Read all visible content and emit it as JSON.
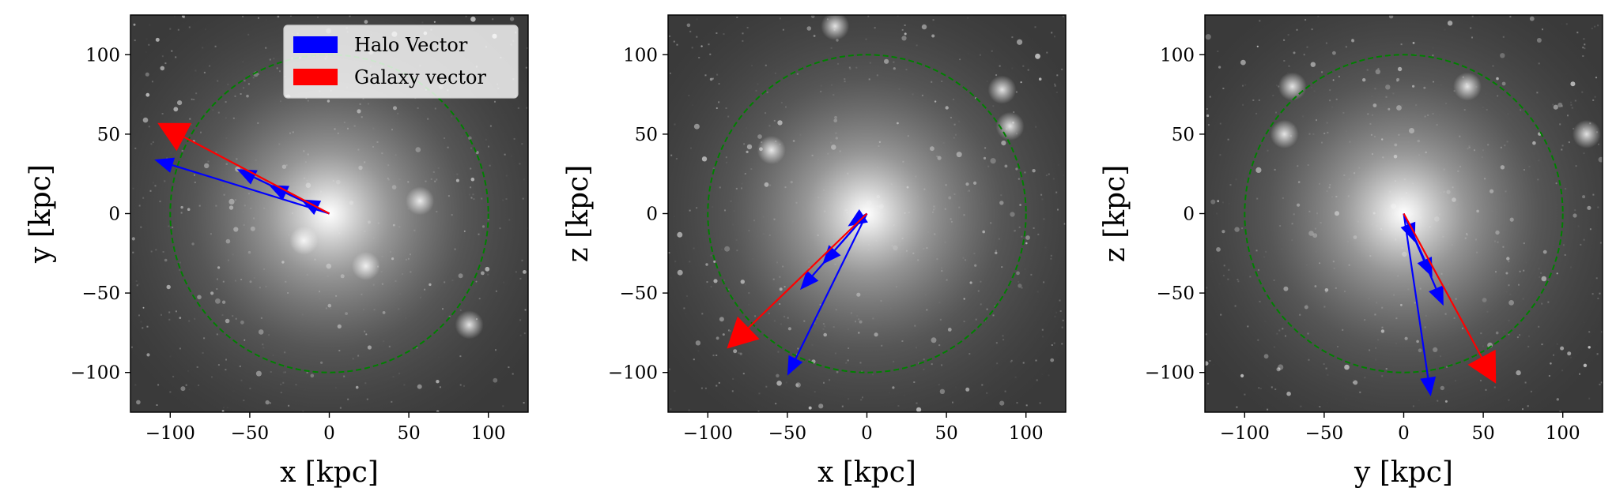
{
  "chart_data": [
    {
      "type": "scatter",
      "xlabel": "x [kpc]",
      "ylabel": "y [kpc]",
      "xlim": [
        -125,
        125
      ],
      "ylim": [
        -125,
        125
      ],
      "xticks": [
        -100,
        -50,
        0,
        50,
        100
      ],
      "yticks": [
        -100,
        -50,
        0,
        50,
        100
      ],
      "xtick_labels": [
        "−100",
        "−50",
        "0",
        "50",
        "100"
      ],
      "ytick_labels": [
        "−100",
        "−50",
        "0",
        "50",
        "100"
      ],
      "background": "grayscale density image",
      "circle": {
        "center": [
          0,
          0
        ],
        "radius": 100,
        "color": "#008000",
        "style": "dashed"
      },
      "legend": {
        "placement": "top-right",
        "entries": [
          {
            "label": "Halo Vector",
            "color": "#0000ff"
          },
          {
            "label": "Galaxy vector",
            "color": "#ff0000"
          }
        ]
      },
      "vectors": [
        {
          "series": "Halo Vector",
          "color": "#0000ff",
          "from": [
            0,
            0
          ],
          "to": [
            -110,
            34
          ],
          "head": "medium"
        },
        {
          "series": "Halo Vector",
          "color": "#0000ff",
          "from": [
            0,
            0
          ],
          "to": [
            -58,
            28
          ],
          "head": "medium"
        },
        {
          "series": "Halo Vector",
          "color": "#0000ff",
          "from": [
            0,
            0
          ],
          "to": [
            -38,
            18
          ],
          "head": "medium"
        },
        {
          "series": "Halo Vector",
          "color": "#0000ff",
          "from": [
            0,
            0
          ],
          "to": [
            -18,
            9
          ],
          "head": "medium"
        },
        {
          "series": "Galaxy vector",
          "color": "#ff0000",
          "from": [
            0,
            0
          ],
          "to": [
            -108,
            57
          ],
          "head": "large"
        }
      ],
      "density_peaks": [
        [
          0,
          0
        ],
        [
          23,
          -33
        ],
        [
          57,
          8
        ],
        [
          88,
          -70
        ],
        [
          -16,
          -17
        ]
      ]
    },
    {
      "type": "scatter",
      "xlabel": "x [kpc]",
      "ylabel": "z [kpc]",
      "xlim": [
        -125,
        125
      ],
      "ylim": [
        -125,
        125
      ],
      "xticks": [
        -100,
        -50,
        0,
        50,
        100
      ],
      "yticks": [
        -100,
        -50,
        0,
        50,
        100
      ],
      "xtick_labels": [
        "−100",
        "−50",
        "0",
        "50",
        "100"
      ],
      "ytick_labels": [
        "−100",
        "−50",
        "0",
        "50",
        "100"
      ],
      "background": "grayscale density image",
      "circle": {
        "center": [
          0,
          0
        ],
        "radius": 100,
        "color": "#008000",
        "style": "dashed"
      },
      "vectors": [
        {
          "series": "Halo Vector",
          "color": "#0000ff",
          "from": [
            0,
            0
          ],
          "to": [
            -50,
            -102
          ],
          "head": "medium"
        },
        {
          "series": "Halo Vector",
          "color": "#0000ff",
          "from": [
            0,
            0
          ],
          "to": [
            -42,
            -48
          ],
          "head": "medium"
        },
        {
          "series": "Halo Vector",
          "color": "#0000ff",
          "from": [
            0,
            0
          ],
          "to": [
            -28,
            -32
          ],
          "head": "medium"
        },
        {
          "series": "Halo Vector",
          "color": "#0000ff",
          "from": [
            0,
            0
          ],
          "to": [
            -12,
            -8
          ],
          "head": "medium"
        },
        {
          "series": "Galaxy vector",
          "color": "#ff0000",
          "from": [
            0,
            0
          ],
          "to": [
            -88,
            -85
          ],
          "head": "large"
        }
      ],
      "density_peaks": [
        [
          0,
          0
        ],
        [
          85,
          78
        ],
        [
          90,
          55
        ],
        [
          -20,
          118
        ],
        [
          -60,
          40
        ]
      ]
    },
    {
      "type": "scatter",
      "xlabel": "y [kpc]",
      "ylabel": "z [kpc]",
      "xlim": [
        -125,
        125
      ],
      "ylim": [
        -125,
        125
      ],
      "xticks": [
        -100,
        -50,
        0,
        50,
        100
      ],
      "yticks": [
        -100,
        -50,
        0,
        50,
        100
      ],
      "xtick_labels": [
        "−100",
        "−50",
        "0",
        "50",
        "100"
      ],
      "ytick_labels": [
        "−100",
        "−50",
        "0",
        "50",
        "100"
      ],
      "background": "grayscale density image",
      "circle": {
        "center": [
          0,
          0
        ],
        "radius": 100,
        "color": "#008000",
        "style": "dashed"
      },
      "vectors": [
        {
          "series": "Halo Vector",
          "color": "#0000ff",
          "from": [
            0,
            0
          ],
          "to": [
            17,
            -115
          ],
          "head": "medium"
        },
        {
          "series": "Halo Vector",
          "color": "#0000ff",
          "from": [
            0,
            0
          ],
          "to": [
            25,
            -58
          ],
          "head": "medium"
        },
        {
          "series": "Halo Vector",
          "color": "#0000ff",
          "from": [
            0,
            0
          ],
          "to": [
            18,
            -40
          ],
          "head": "medium"
        },
        {
          "series": "Halo Vector",
          "color": "#0000ff",
          "from": [
            0,
            0
          ],
          "to": [
            7,
            -18
          ],
          "head": "medium"
        },
        {
          "series": "Galaxy vector",
          "color": "#ff0000",
          "from": [
            0,
            0
          ],
          "to": [
            58,
            -107
          ],
          "head": "large"
        }
      ],
      "density_peaks": [
        [
          0,
          0
        ],
        [
          -75,
          50
        ],
        [
          115,
          50
        ],
        [
          -70,
          80
        ],
        [
          40,
          80
        ]
      ]
    }
  ]
}
